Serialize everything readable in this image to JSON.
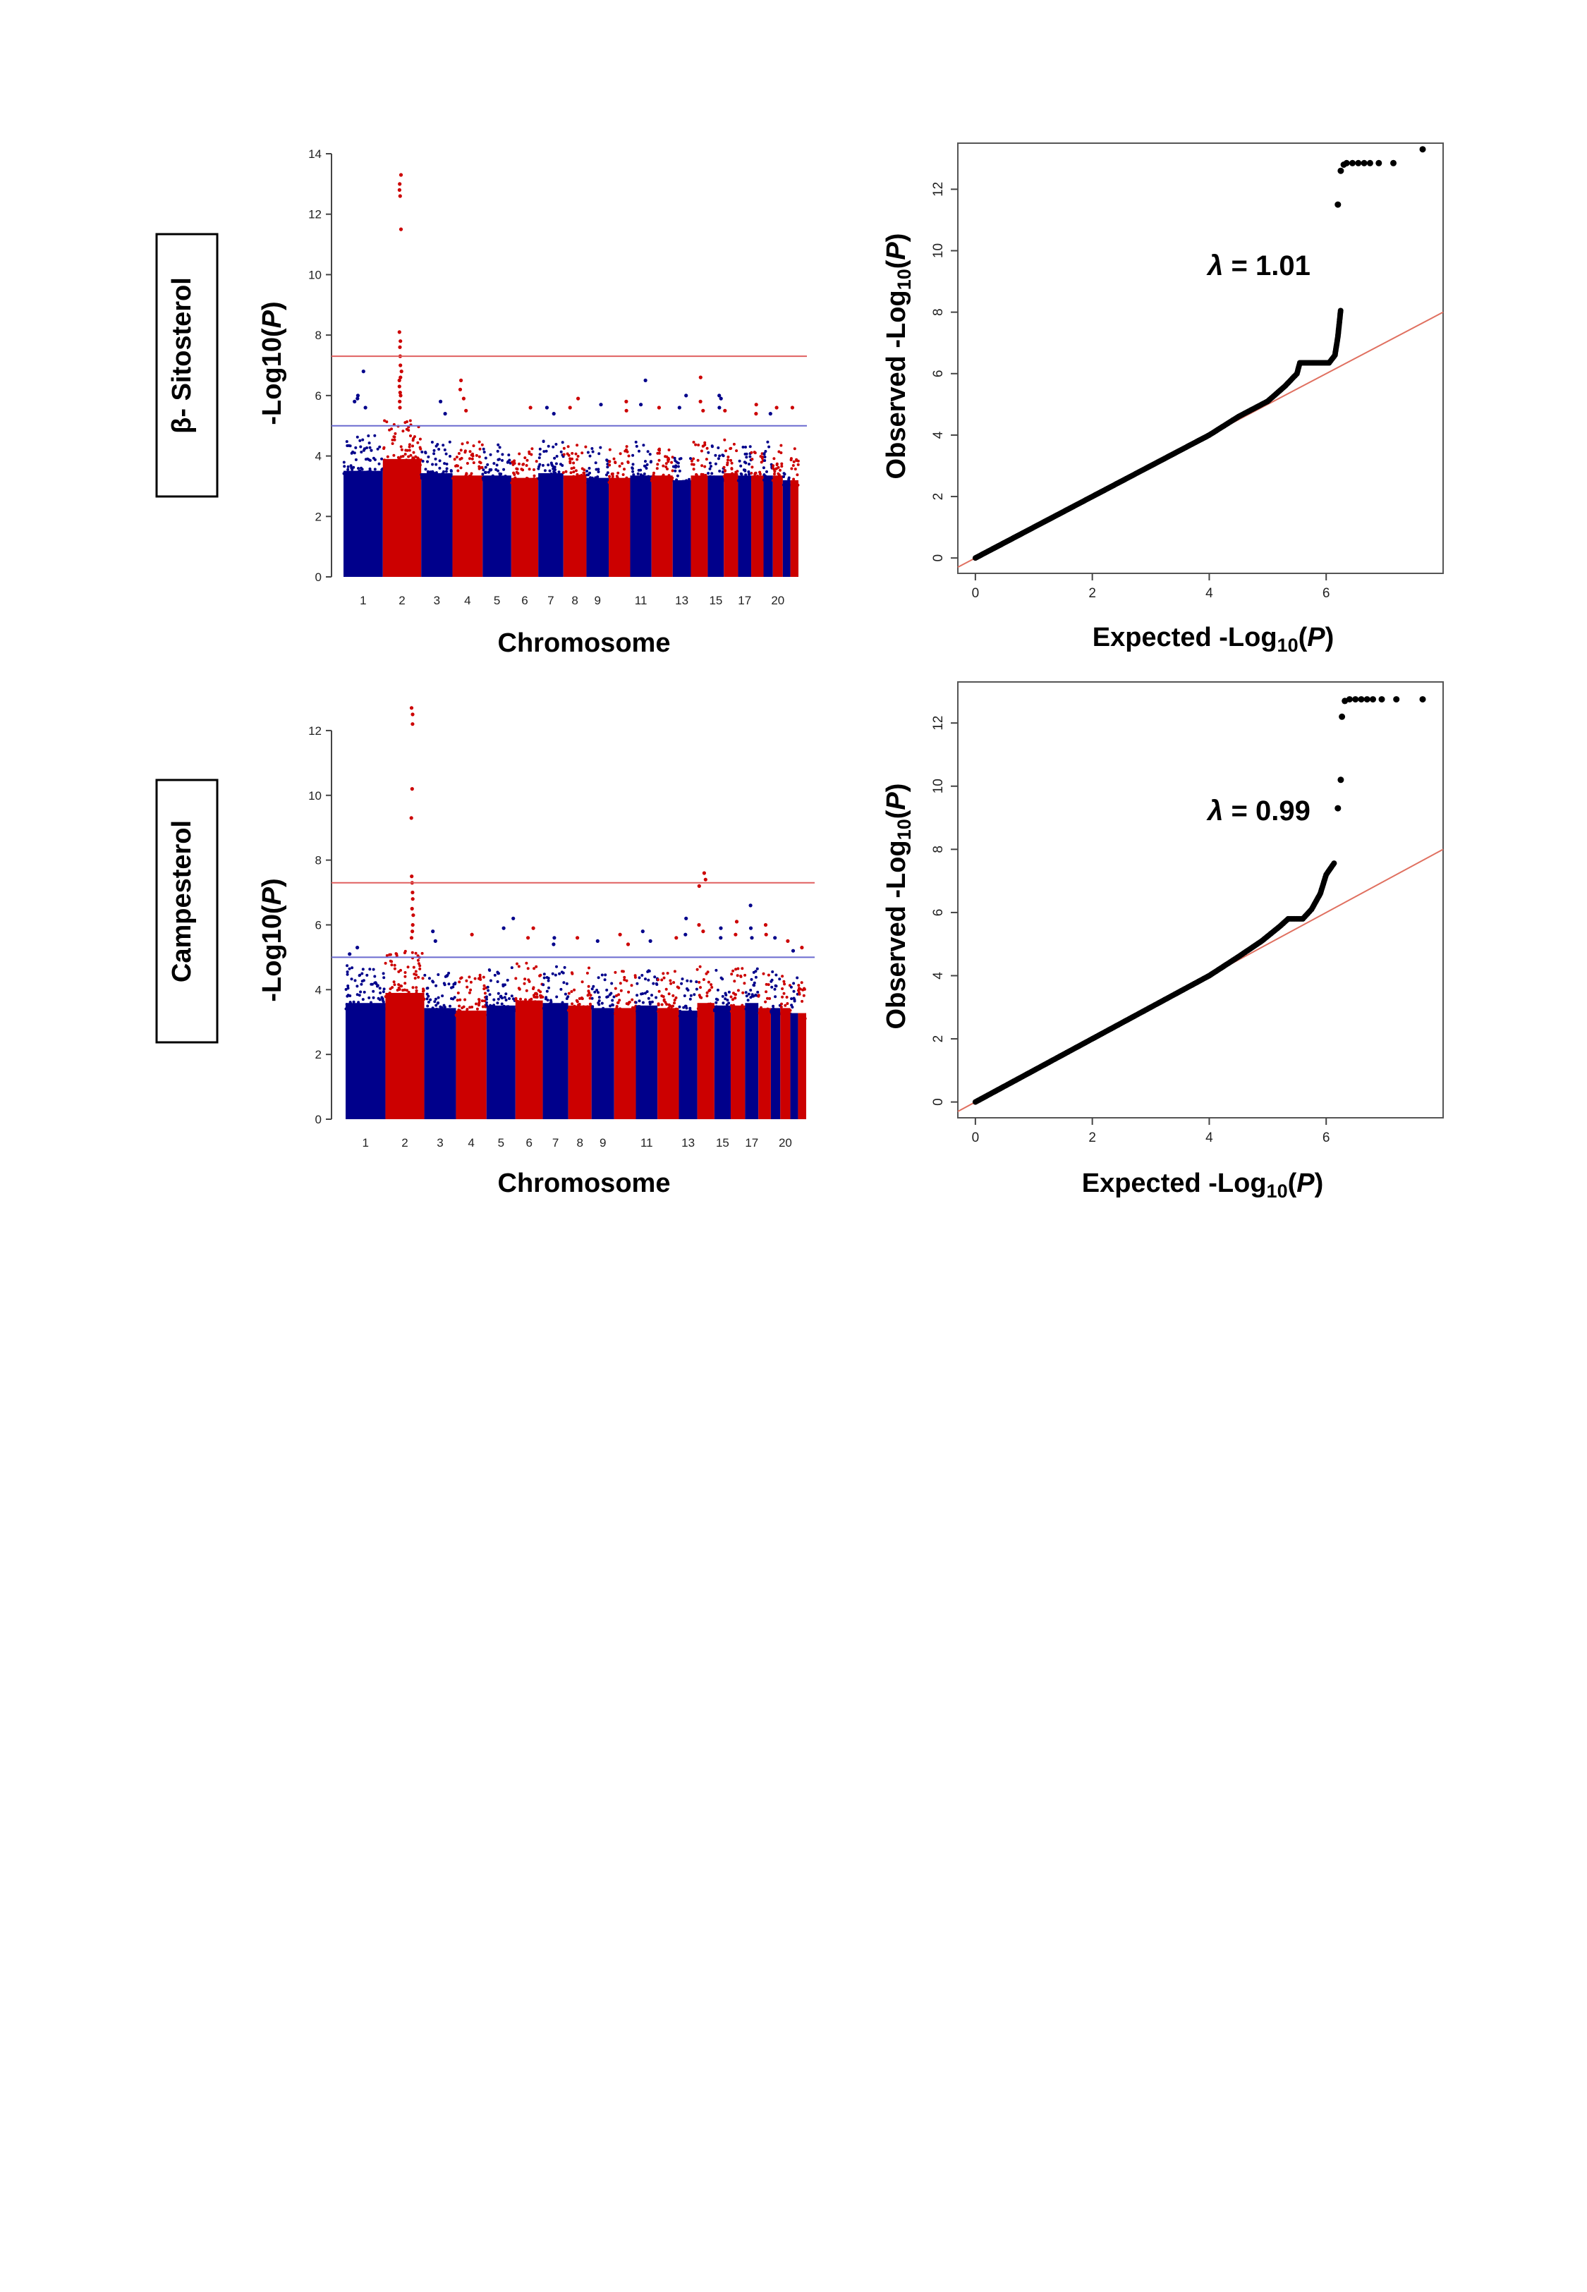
{
  "rows": [
    {
      "trait_label": "β- Sitosterol",
      "manhattan": {
        "ylabel_prefix": "-Log10(",
        "ylabel_italic": "P",
        "ylabel_suffix": ")",
        "xlabel": "Chromosome"
      },
      "qq": {
        "ylabel_prefix": "Observed -Log",
        "ylabel_sub": "10",
        "ylabel_open": "(",
        "ylabel_italic": "P",
        "ylabel_close": ")",
        "xlabel_prefix": "Expected -Log",
        "xlabel_sub": "10",
        "xlabel_open": "(",
        "xlabel_italic": "P",
        "xlabel_close": ")",
        "lambda_symbol": "λ",
        "lambda_text": " = 1.01"
      }
    },
    {
      "trait_label": "Campesterol",
      "manhattan": {
        "ylabel_prefix": "-Log10(",
        "ylabel_italic": "P",
        "ylabel_suffix": ")",
        "xlabel": "Chromosome"
      },
      "qq": {
        "ylabel_prefix": "Observed -Log",
        "ylabel_sub": "10",
        "ylabel_open": "(",
        "ylabel_italic": "P",
        "ylabel_close": ")",
        "xlabel_prefix": "Expected -Log",
        "xlabel_sub": "10",
        "xlabel_open": "(",
        "xlabel_italic": "P",
        "xlabel_close": ")",
        "lambda_symbol": "λ",
        "lambda_text": " = 0.99"
      }
    }
  ],
  "colors": {
    "chrom_odd": "#00008b",
    "chrom_even": "#cc0000",
    "genome_wide_line": "#e06060",
    "suggestive_line": "#6a6ad0",
    "qq_points": "#000000",
    "qq_diagonal": "#e07060"
  },
  "chart_data": [
    {
      "type": "scatter",
      "subtype": "manhattan",
      "ylabel": "-Log10(P)",
      "xlabel": "Chromosome",
      "ylim": [
        0,
        14
      ],
      "yticks": [
        0,
        2,
        4,
        6,
        8,
        10,
        12,
        14
      ],
      "chromosomes": [
        "1",
        "2",
        "3",
        "4",
        "5",
        "6",
        "7",
        "8",
        "9",
        "10",
        "11",
        "12",
        "13",
        "14",
        "15",
        "16",
        "17",
        "18",
        "19",
        "20",
        "21",
        "22"
      ],
      "chromosome_tick_labels": [
        "1",
        "2",
        "3",
        "4",
        "5",
        "6",
        "7",
        "8",
        "9",
        "11",
        "13",
        "15",
        "17",
        "20"
      ],
      "chromosome_tick_positions": [
        1,
        2,
        3,
        4,
        5,
        6,
        7,
        8,
        9,
        11,
        13,
        15,
        17,
        20
      ],
      "thresholds": {
        "genome_wide": 7.3,
        "suggestive": 5.0
      },
      "background_max": [
        4.5,
        5.0,
        4.4,
        4.3,
        4.3,
        4.2,
        4.4,
        4.3,
        4.2,
        4.2,
        4.3,
        4.3,
        4.1,
        4.3,
        4.3,
        4.4,
        4.3,
        4.3,
        4.3,
        4.3,
        4.1,
        4.1
      ],
      "peaks": [
        {
          "chromosome": "1",
          "values": [
            6.8,
            6.0,
            5.9,
            5.8,
            5.6
          ]
        },
        {
          "chromosome": "2",
          "values": [
            13.3,
            13.0,
            12.8,
            12.6,
            11.5,
            8.1,
            7.8,
            7.6,
            7.3,
            7.0,
            6.8,
            6.6,
            6.5,
            6.3,
            6.1,
            6.0,
            5.8,
            5.6
          ]
        },
        {
          "chromosome": "3",
          "values": [
            5.8,
            5.4
          ]
        },
        {
          "chromosome": "4",
          "values": [
            6.5,
            6.2,
            5.9,
            5.5
          ]
        },
        {
          "chromosome": "6",
          "values": [
            5.6
          ]
        },
        {
          "chromosome": "7",
          "values": [
            5.6,
            5.4
          ]
        },
        {
          "chromosome": "8",
          "values": [
            5.9,
            5.6
          ]
        },
        {
          "chromosome": "9",
          "values": [
            5.7
          ]
        },
        {
          "chromosome": "10",
          "values": [
            5.8,
            5.5
          ]
        },
        {
          "chromosome": "11",
          "values": [
            6.5,
            5.7
          ]
        },
        {
          "chromosome": "12",
          "values": [
            5.6
          ]
        },
        {
          "chromosome": "13",
          "values": [
            6.0,
            5.6
          ]
        },
        {
          "chromosome": "14",
          "values": [
            6.6,
            5.8,
            5.5
          ]
        },
        {
          "chromosome": "15",
          "values": [
            6.0,
            5.9,
            5.6
          ]
        },
        {
          "chromosome": "16",
          "values": [
            5.5
          ]
        },
        {
          "chromosome": "18",
          "values": [
            5.7,
            5.4
          ]
        },
        {
          "chromosome": "19",
          "values": [
            5.4
          ]
        },
        {
          "chromosome": "20",
          "values": [
            5.6
          ]
        },
        {
          "chromosome": "22",
          "values": [
            5.6
          ]
        }
      ]
    },
    {
      "type": "scatter",
      "subtype": "qq",
      "xlabel": "Expected -Log10(P)",
      "ylabel": "Observed -Log10(P)",
      "xlim": [
        -0.3,
        8.0
      ],
      "ylim": [
        -0.5,
        13.5
      ],
      "xticks": [
        0,
        2,
        4,
        6
      ],
      "yticks": [
        0,
        2,
        4,
        6,
        8,
        10,
        12
      ],
      "lambda": 1.01,
      "curve": [
        [
          0,
          0
        ],
        [
          1,
          1
        ],
        [
          2,
          2
        ],
        [
          3,
          3
        ],
        [
          4,
          4
        ],
        [
          4.5,
          4.6
        ],
        [
          5.0,
          5.1
        ],
        [
          5.3,
          5.6
        ],
        [
          5.5,
          6.0
        ],
        [
          5.55,
          6.35
        ],
        [
          6.05,
          6.35
        ],
        [
          6.15,
          6.6
        ],
        [
          6.2,
          7.2
        ],
        [
          6.25,
          8.1
        ]
      ],
      "top_points": [
        [
          6.2,
          11.5
        ],
        [
          6.25,
          12.6
        ],
        [
          6.3,
          12.8
        ],
        [
          6.35,
          12.85
        ],
        [
          6.45,
          12.85
        ],
        [
          6.55,
          12.85
        ],
        [
          6.65,
          12.85
        ],
        [
          6.75,
          12.85
        ],
        [
          6.9,
          12.85
        ],
        [
          7.15,
          12.85
        ],
        [
          7.65,
          13.3
        ]
      ]
    },
    {
      "type": "scatter",
      "subtype": "manhattan",
      "ylabel": "-Log10(P)",
      "xlabel": "Chromosome",
      "ylim": [
        0,
        13
      ],
      "yticks": [
        0,
        2,
        4,
        6,
        8,
        10,
        12
      ],
      "chromosomes": [
        "1",
        "2",
        "3",
        "4",
        "5",
        "6",
        "7",
        "8",
        "9",
        "10",
        "11",
        "12",
        "13",
        "14",
        "15",
        "16",
        "17",
        "18",
        "19",
        "20",
        "21",
        "22"
      ],
      "chromosome_tick_labels": [
        "1",
        "2",
        "3",
        "4",
        "5",
        "6",
        "7",
        "8",
        "9",
        "11",
        "13",
        "15",
        "17",
        "20"
      ],
      "chromosome_tick_positions": [
        1,
        2,
        3,
        4,
        5,
        6,
        7,
        8,
        9,
        11,
        13,
        15,
        17,
        20
      ],
      "thresholds": {
        "genome_wide": 7.3,
        "suggestive": 5.0
      },
      "background_max": [
        4.6,
        5.0,
        4.4,
        4.3,
        4.5,
        4.7,
        4.6,
        4.5,
        4.4,
        4.4,
        4.5,
        4.4,
        4.3,
        4.6,
        4.5,
        4.5,
        4.6,
        4.4,
        4.4,
        4.4,
        4.2,
        4.2
      ],
      "peaks": [
        {
          "chromosome": "1",
          "values": [
            5.3,
            5.1
          ]
        },
        {
          "chromosome": "2",
          "values": [
            12.7,
            12.5,
            12.2,
            10.2,
            9.3,
            7.5,
            7.3,
            7.0,
            6.8,
            6.5,
            6.3,
            6.0,
            5.8,
            5.6
          ]
        },
        {
          "chromosome": "3",
          "values": [
            5.8,
            5.5
          ]
        },
        {
          "chromosome": "4",
          "values": [
            5.7
          ]
        },
        {
          "chromosome": "5",
          "values": [
            6.2,
            5.9
          ]
        },
        {
          "chromosome": "6",
          "values": [
            5.9,
            5.6
          ]
        },
        {
          "chromosome": "7",
          "values": [
            5.6,
            5.4
          ]
        },
        {
          "chromosome": "8",
          "values": [
            5.6
          ]
        },
        {
          "chromosome": "9",
          "values": [
            5.5
          ]
        },
        {
          "chromosome": "10",
          "values": [
            5.7,
            5.4
          ]
        },
        {
          "chromosome": "11",
          "values": [
            5.8,
            5.5
          ]
        },
        {
          "chromosome": "12",
          "values": [
            5.6
          ]
        },
        {
          "chromosome": "13",
          "values": [
            6.2,
            5.7
          ]
        },
        {
          "chromosome": "14",
          "values": [
            7.6,
            7.4,
            7.2,
            6.0,
            5.8
          ]
        },
        {
          "chromosome": "15",
          "values": [
            5.9,
            5.6
          ]
        },
        {
          "chromosome": "16",
          "values": [
            6.1,
            5.7
          ]
        },
        {
          "chromosome": "17",
          "values": [
            6.6,
            5.9,
            5.6
          ]
        },
        {
          "chromosome": "18",
          "values": [
            6.0,
            5.7
          ]
        },
        {
          "chromosome": "19",
          "values": [
            5.6
          ]
        },
        {
          "chromosome": "20",
          "values": [
            5.5
          ]
        },
        {
          "chromosome": "21",
          "values": [
            5.2
          ]
        },
        {
          "chromosome": "22",
          "values": [
            5.3
          ]
        }
      ]
    },
    {
      "type": "scatter",
      "subtype": "qq",
      "xlabel": "Expected -Log10(P)",
      "ylabel": "Observed -Log10(P)",
      "xlim": [
        -0.3,
        8.0
      ],
      "ylim": [
        -0.5,
        13.3
      ],
      "xticks": [
        0,
        2,
        4,
        6
      ],
      "yticks": [
        0,
        2,
        4,
        6,
        8,
        10,
        12
      ],
      "lambda": 0.99,
      "curve": [
        [
          0,
          0
        ],
        [
          1,
          1
        ],
        [
          2,
          2
        ],
        [
          3,
          3
        ],
        [
          4,
          4
        ],
        [
          4.5,
          4.6
        ],
        [
          4.9,
          5.1
        ],
        [
          5.2,
          5.55
        ],
        [
          5.35,
          5.8
        ],
        [
          5.6,
          5.8
        ],
        [
          5.75,
          6.1
        ],
        [
          5.9,
          6.6
        ],
        [
          6.0,
          7.2
        ],
        [
          6.15,
          7.6
        ]
      ],
      "top_points": [
        [
          6.2,
          9.3
        ],
        [
          6.25,
          10.2
        ],
        [
          6.27,
          12.2
        ],
        [
          6.32,
          12.7
        ],
        [
          6.4,
          12.75
        ],
        [
          6.5,
          12.75
        ],
        [
          6.6,
          12.75
        ],
        [
          6.7,
          12.75
        ],
        [
          6.8,
          12.75
        ],
        [
          6.95,
          12.75
        ],
        [
          7.2,
          12.75
        ],
        [
          7.65,
          12.75
        ]
      ]
    }
  ]
}
